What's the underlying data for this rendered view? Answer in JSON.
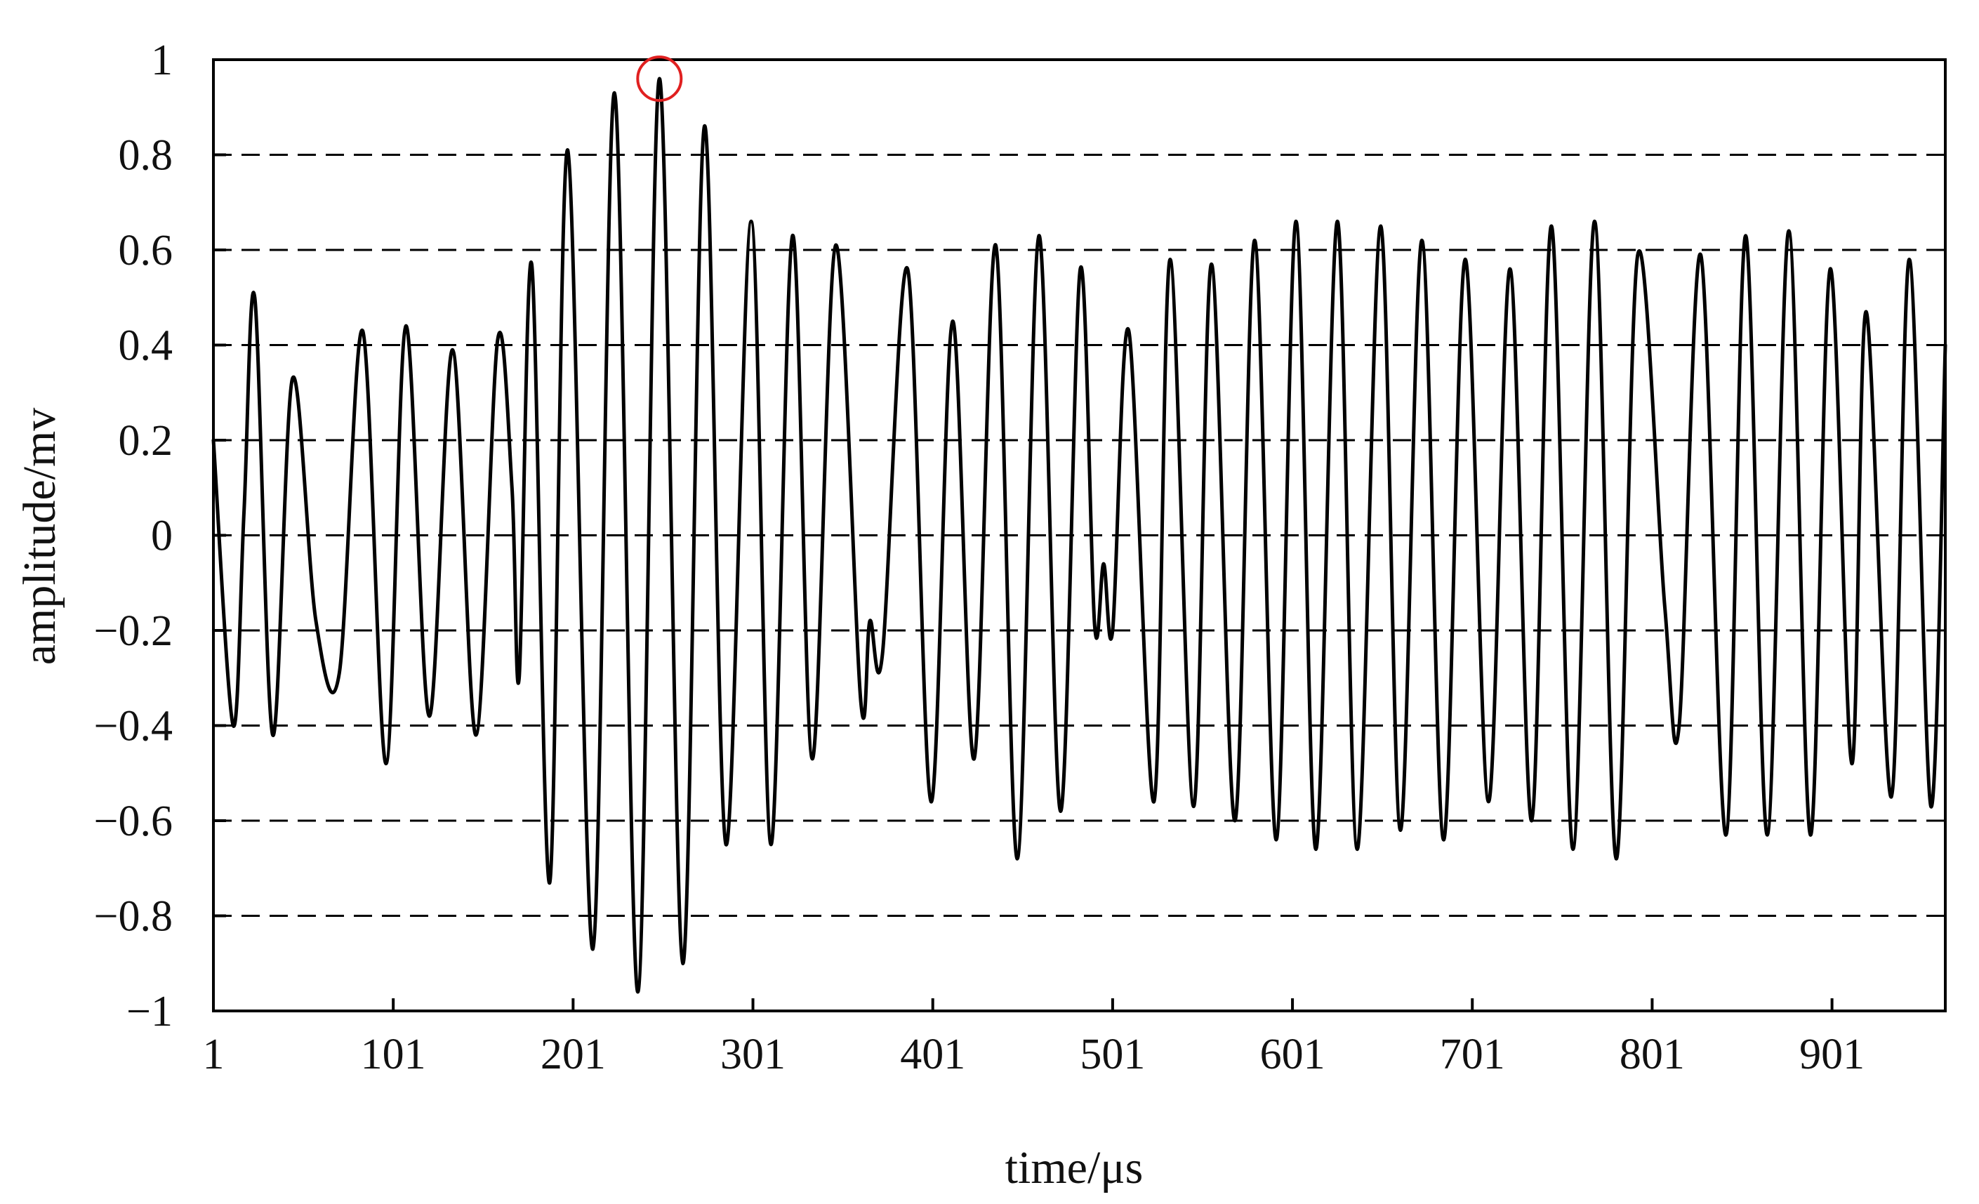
{
  "chart_data": {
    "type": "line",
    "title": "",
    "xlabel": "time/μs",
    "ylabel": "amplitude/mv",
    "xlim": [
      1,
      964
    ],
    "ylim": [
      -1,
      1
    ],
    "x_ticks": [
      1,
      101,
      201,
      301,
      401,
      501,
      601,
      701,
      801,
      901
    ],
    "x_tick_labels": [
      "1",
      "101",
      "201",
      "301",
      "401",
      "501",
      "601",
      "701",
      "801",
      "901"
    ],
    "y_ticks": [
      -1,
      -0.8,
      -0.6,
      -0.4,
      -0.2,
      0,
      0.2,
      0.4,
      0.6,
      0.8,
      1
    ],
    "y_tick_labels": [
      "−1",
      "−0.8",
      "−0.6",
      "−0.4",
      "−0.2",
      "0",
      "0.2",
      "0.4",
      "0.6",
      "0.8",
      "1"
    ],
    "grid": {
      "horizontal": true,
      "vertical": false,
      "style": "dashed"
    },
    "legend": "none",
    "colors": {
      "line": "#000000",
      "grid": "#000000",
      "marker": "#e02020"
    },
    "highlight": {
      "x": 249,
      "y": 0.96,
      "shape": "circle"
    },
    "series": [
      {
        "values": [
          [
            1,
            0.2
          ],
          [
            12,
            -0.4
          ],
          [
            18,
            0.05
          ],
          [
            24,
            0.5
          ],
          [
            34,
            -0.42
          ],
          [
            45,
            0.33
          ],
          [
            58,
            -0.18
          ],
          [
            71,
            -0.29
          ],
          [
            84,
            0.43
          ],
          [
            97,
            -0.48
          ],
          [
            108,
            0.44
          ],
          [
            121,
            -0.38
          ],
          [
            134,
            0.39
          ],
          [
            147,
            -0.42
          ],
          [
            159,
            0.41
          ],
          [
            167,
            0.1
          ],
          [
            171,
            -0.3
          ],
          [
            178,
            0.57
          ],
          [
            188,
            -0.73
          ],
          [
            198,
            0.81
          ],
          [
            212,
            -0.87
          ],
          [
            224,
            0.93
          ],
          [
            237,
            -0.96
          ],
          [
            249,
            0.96
          ],
          [
            262,
            -0.9
          ],
          [
            274,
            0.86
          ],
          [
            286,
            -0.65
          ],
          [
            300,
            0.66
          ],
          [
            311,
            -0.65
          ],
          [
            323,
            0.63
          ],
          [
            334,
            -0.47
          ],
          [
            347,
            0.61
          ],
          [
            361,
            -0.35
          ],
          [
            366,
            -0.18
          ],
          [
            373,
            -0.25
          ],
          [
            387,
            0.56
          ],
          [
            400,
            -0.56
          ],
          [
            412,
            0.45
          ],
          [
            424,
            -0.47
          ],
          [
            436,
            0.61
          ],
          [
            448,
            -0.68
          ],
          [
            460,
            0.63
          ],
          [
            472,
            -0.58
          ],
          [
            483,
            0.56
          ],
          [
            491,
            -0.19
          ],
          [
            496,
            -0.06
          ],
          [
            501,
            -0.2
          ],
          [
            510,
            0.43
          ],
          [
            524,
            -0.56
          ],
          [
            533,
            0.58
          ],
          [
            546,
            -0.57
          ],
          [
            556,
            0.57
          ],
          [
            569,
            -0.6
          ],
          [
            580,
            0.62
          ],
          [
            592,
            -0.64
          ],
          [
            603,
            0.66
          ],
          [
            614,
            -0.66
          ],
          [
            626,
            0.66
          ],
          [
            637,
            -0.66
          ],
          [
            650,
            0.65
          ],
          [
            661,
            -0.62
          ],
          [
            673,
            0.62
          ],
          [
            685,
            -0.64
          ],
          [
            697,
            0.58
          ],
          [
            710,
            -0.56
          ],
          [
            722,
            0.56
          ],
          [
            734,
            -0.6
          ],
          [
            745,
            0.65
          ],
          [
            757,
            -0.66
          ],
          [
            769,
            0.66
          ],
          [
            781,
            -0.68
          ],
          [
            793,
            0.59
          ],
          [
            808,
            -0.15
          ],
          [
            816,
            -0.4
          ],
          [
            828,
            0.59
          ],
          [
            842,
            -0.63
          ],
          [
            853,
            0.63
          ],
          [
            865,
            -0.63
          ],
          [
            877,
            0.64
          ],
          [
            889,
            -0.63
          ],
          [
            900,
            0.56
          ],
          [
            912,
            -0.48
          ],
          [
            920,
            0.47
          ],
          [
            934,
            -0.55
          ],
          [
            944,
            0.58
          ],
          [
            956,
            -0.57
          ],
          [
            964,
            0.4
          ]
        ]
      }
    ]
  }
}
